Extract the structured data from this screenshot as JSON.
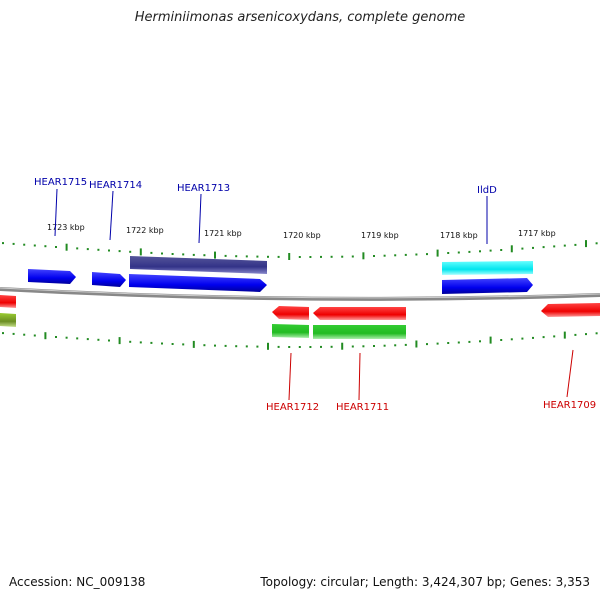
{
  "title": "Herminiimonas arsenicoxydans, complete genome",
  "footer": {
    "accession": "Accession: NC_009138",
    "summary": "Topology: circular; Length: 3,424,307 bp; Genes: 3,353"
  },
  "colors": {
    "forward_gene": "#0000ee",
    "forward_rna": "#333388",
    "forward_misc": "#00e5ee",
    "reverse_gene": "#ee0000",
    "reverse_feature": "#22bb22",
    "olive_feature": "#6b8e23",
    "tick": "#228b22",
    "backbone": "#888888",
    "forward_label": "#0000aa",
    "reverse_label": "#cc0000"
  },
  "scale": {
    "unit": "kbp",
    "top_ticks": [
      "1723 kbp",
      "1722 kbp",
      "1721 kbp",
      "1720 kbp",
      "1719 kbp",
      "1718 kbp",
      "1717 kbp"
    ]
  },
  "genes_forward": [
    {
      "name": "HEAR1715",
      "start_kbp": 1723.24,
      "end_kbp": 1722.86,
      "strand": "+"
    },
    {
      "name": "HEAR1714",
      "start_kbp": 1722.55,
      "end_kbp": 1722.25,
      "strand": "+"
    },
    {
      "name": "HEAR1713",
      "start_kbp": 1722.19,
      "end_kbp": 1720.51,
      "strand": "+"
    },
    {
      "name": "IldD",
      "start_kbp": 1717.93,
      "end_kbp": 1716.82,
      "strand": "+"
    }
  ],
  "genes_reverse": [
    {
      "name": "HEAR1712",
      "start_kbp": 1720.25,
      "end_kbp": 1719.78,
      "strand": "-"
    },
    {
      "name": "HEAR1711",
      "start_kbp": 1719.73,
      "end_kbp": 1718.58,
      "strand": "-"
    },
    {
      "name": "HEAR1709",
      "start_kbp": 1716.7,
      "end_kbp": 1716.0,
      "strand": "-"
    }
  ]
}
